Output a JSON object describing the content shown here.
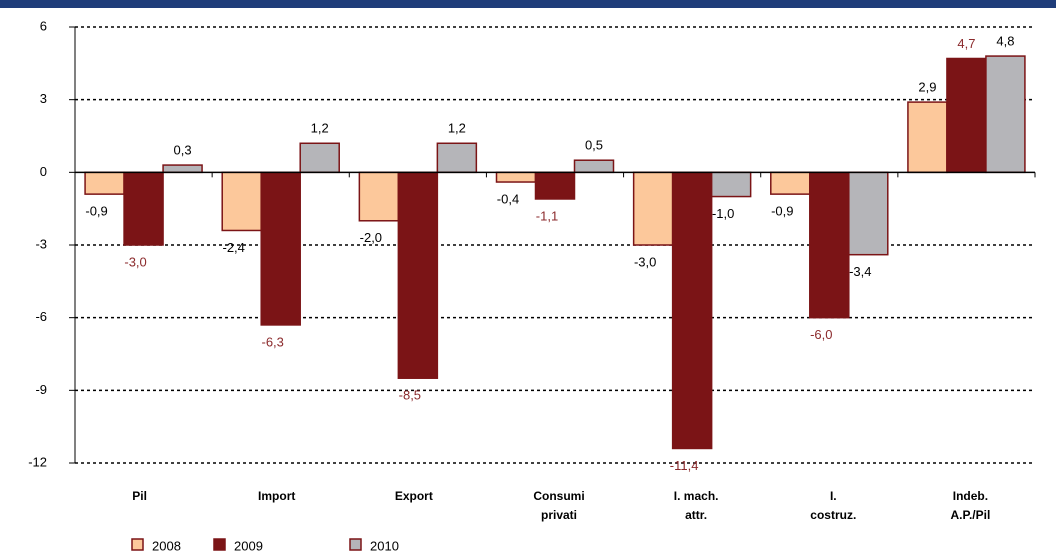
{
  "chart_data": {
    "type": "bar",
    "categories": [
      [
        "Pil"
      ],
      [
        "Import"
      ],
      [
        "Export"
      ],
      [
        "Consumi",
        "privati"
      ],
      [
        "I. mach.",
        "attr."
      ],
      [
        "I.",
        "costruz."
      ],
      [
        "Indeb.",
        "A.P./Pil"
      ]
    ],
    "series": [
      {
        "name": "2008",
        "color": "#fcc89b",
        "label_color": "#000000",
        "values": [
          -0.9,
          -2.4,
          -2.0,
          -0.4,
          -3.0,
          -0.9,
          2.9
        ],
        "value_labels": [
          "-0,9",
          "-2,4",
          "-2,0",
          "-0,4",
          "-3,0",
          "-0,9",
          "2,9"
        ]
      },
      {
        "name": "2009",
        "color": "#7b1416",
        "label_color": "#8b2a2c",
        "values": [
          -3.0,
          -6.3,
          -8.5,
          -1.1,
          -11.4,
          -6.0,
          4.7
        ],
        "value_labels": [
          "-3,0",
          "-6,3",
          "-8,5",
          "-1,1",
          "-11,4",
          "-6,0",
          "4,7"
        ]
      },
      {
        "name": "2010",
        "color": "#b5b5b9",
        "label_color": "#000000",
        "values": [
          0.3,
          1.2,
          1.2,
          0.5,
          -1.0,
          -3.4,
          4.8
        ],
        "value_labels": [
          "0,3",
          "1,2",
          "1,2",
          "0,5",
          "-1,0",
          "-3,4",
          "4,8"
        ]
      }
    ],
    "ylim": [
      -12,
      6
    ],
    "yticks": [
      6,
      3,
      0,
      -3,
      -6,
      -9,
      -12
    ],
    "grid": true,
    "legend": "bottom"
  }
}
